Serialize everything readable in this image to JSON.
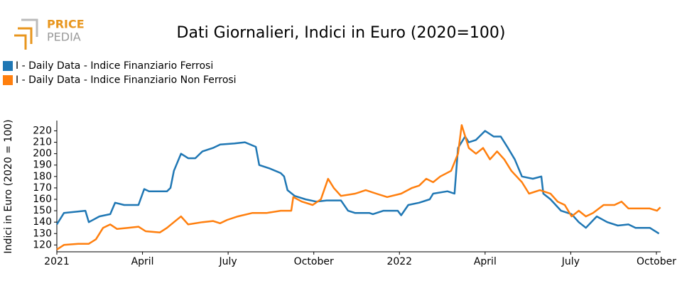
{
  "chart_data": {
    "type": "line",
    "logo": [
      "PRICE",
      "PEDIA"
    ],
    "title": "Dati Giornalieri, Indici in Euro (2020=100)",
    "y_label": "Indici in Euro (2020 = 100)",
    "legend": "top-left",
    "xlim": [
      0,
      21.15
    ],
    "xticks": [
      {
        "value": 0,
        "label": "2021"
      },
      {
        "value": 3,
        "label": "April"
      },
      {
        "value": 6,
        "label": "July"
      },
      {
        "value": 9,
        "label": "October"
      },
      {
        "value": 12,
        "label": "2022"
      },
      {
        "value": 15,
        "label": "April"
      },
      {
        "value": 18,
        "label": "July"
      },
      {
        "value": 21,
        "label": "October"
      }
    ],
    "ylim": [
      114,
      229
    ],
    "yticks": [
      120,
      130,
      140,
      150,
      160,
      170,
      180,
      190,
      200,
      210,
      220
    ],
    "series": [
      {
        "name": "I - Daily Data - Indice Finanziario Ferrosi",
        "color": "#1f77b4",
        "x": [
          0,
          0.25,
          1.0,
          1.12,
          1.49,
          1.87,
          2.04,
          2.36,
          2.86,
          3.06,
          3.23,
          3.86,
          3.98,
          4.1,
          4.35,
          4.6,
          4.85,
          5.1,
          5.47,
          5.72,
          6.22,
          6.59,
          6.97,
          7.09,
          7.46,
          7.84,
          7.96,
          8.08,
          8.33,
          8.71,
          9.08,
          9.45,
          9.95,
          10.2,
          10.45,
          10.95,
          11.07,
          11.44,
          11.94,
          12.06,
          12.31,
          12.69,
          13.06,
          13.18,
          13.68,
          13.93,
          14.05,
          14.3,
          14.43,
          14.68,
          15.0,
          15.3,
          15.55,
          15.8,
          16.04,
          16.29,
          16.67,
          16.97,
          17.04,
          17.29,
          17.66,
          18.03,
          18.28,
          18.53,
          18.91,
          19.28,
          19.65,
          20.02,
          20.27,
          20.77,
          21.09
        ],
        "values": [
          138,
          148,
          150,
          140,
          145,
          147,
          157,
          155,
          155,
          169,
          167,
          167,
          170,
          185,
          200,
          196,
          196,
          202,
          205,
          208,
          209,
          210,
          206,
          190,
          187,
          183,
          180,
          168,
          163,
          160,
          158,
          159,
          159,
          150,
          148,
          148,
          147,
          150,
          150,
          146,
          155,
          157,
          160,
          165,
          167,
          165,
          205,
          215,
          210,
          212,
          220,
          215,
          215,
          205,
          195,
          180,
          178,
          180,
          165,
          160,
          150,
          147,
          140,
          135,
          145,
          140,
          137,
          138,
          135,
          135,
          130
        ]
      },
      {
        "name": "I - Daily Data - Indice Finanziario Non Ferrosi",
        "color": "#ff7f0e",
        "x": [
          0,
          0.25,
          0.75,
          1.12,
          1.37,
          1.62,
          1.87,
          2.11,
          2.49,
          2.86,
          3.11,
          3.61,
          3.86,
          4.1,
          4.35,
          4.6,
          5.1,
          5.47,
          5.72,
          5.97,
          6.34,
          6.84,
          7.34,
          7.84,
          8.21,
          8.28,
          8.58,
          8.96,
          9.25,
          9.5,
          9.7,
          9.95,
          10.45,
          10.82,
          11.19,
          11.57,
          12.06,
          12.44,
          12.69,
          12.94,
          13.18,
          13.43,
          13.81,
          14.05,
          14.18,
          14.43,
          14.68,
          14.93,
          15.17,
          15.42,
          15.67,
          15.92,
          16.29,
          16.54,
          16.92,
          17.29,
          17.54,
          17.79,
          18.03,
          18.28,
          18.53,
          18.78,
          19.15,
          19.53,
          19.78,
          20.02,
          20.4,
          20.77,
          21.02,
          21.14
        ],
        "values": [
          116,
          120,
          121,
          121,
          125,
          135,
          138,
          134,
          135,
          136,
          132,
          131,
          135,
          140,
          145,
          138,
          140,
          141,
          139,
          142,
          145,
          148,
          148,
          150,
          150,
          162,
          158,
          155,
          160,
          178,
          170,
          163,
          165,
          168,
          165,
          162,
          165,
          170,
          172,
          178,
          175,
          180,
          185,
          200,
          225,
          205,
          200,
          205,
          195,
          202,
          195,
          185,
          175,
          165,
          168,
          165,
          158,
          155,
          145,
          150,
          145,
          148,
          155,
          155,
          158,
          152,
          152,
          152,
          150,
          153
        ]
      }
    ]
  }
}
